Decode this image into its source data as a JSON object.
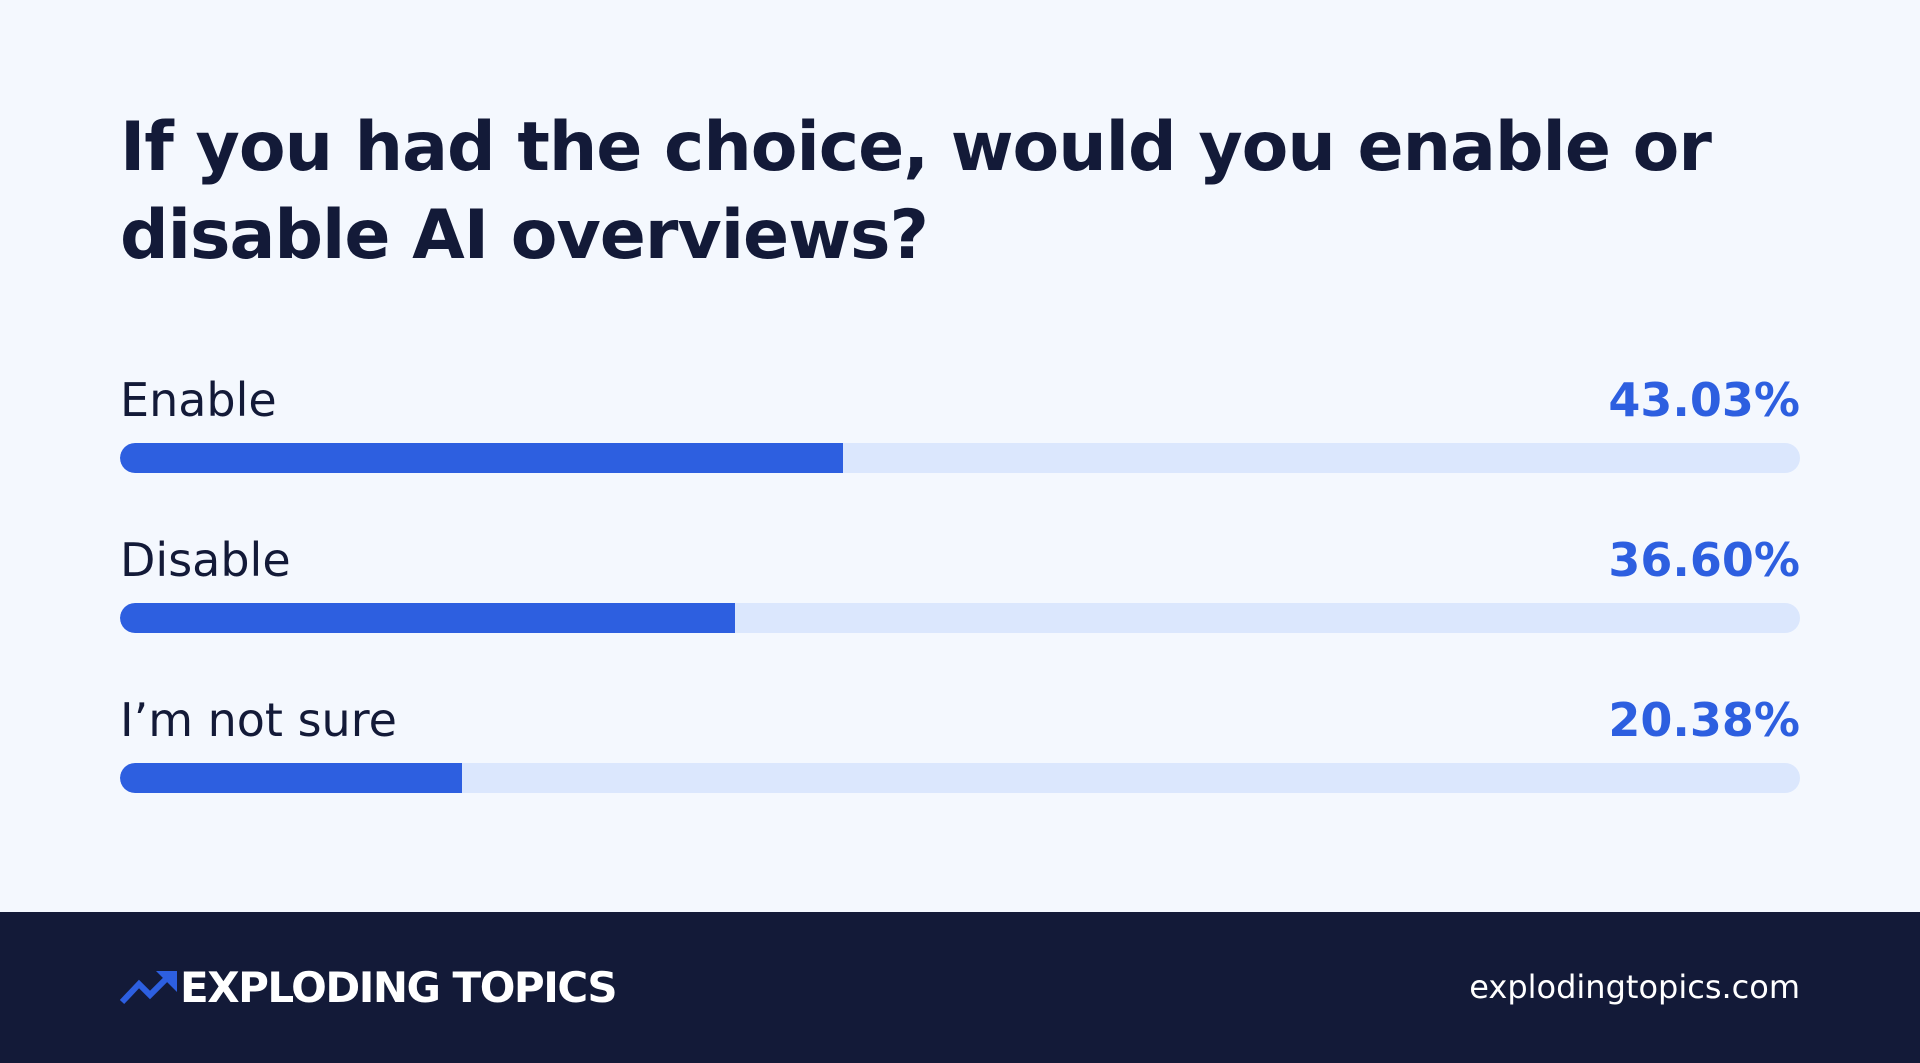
{
  "chart_data": {
    "type": "bar",
    "orientation": "horizontal",
    "title": "If you had the choice, would you enable or disable AI overviews?",
    "categories": [
      "Enable",
      "Disable",
      "I’m not sure"
    ],
    "value_labels": [
      "43.03%",
      "36.60%",
      "20.38%"
    ],
    "values": [
      43.03,
      36.6,
      20.38
    ],
    "xlim": [
      0,
      100
    ],
    "grid": false,
    "legend": "none",
    "colors": {
      "bar": "#2d5fe0",
      "track": "#dbe7fd",
      "label": "#131a38",
      "value": "#2d5fe0"
    }
  },
  "footer": {
    "brand": "EXPLODING TOPICS",
    "brand_icon": "trending-up-arrow-icon",
    "url": "explodingtopics.com",
    "background": "#131a38",
    "accent": "#2d5fe0"
  }
}
